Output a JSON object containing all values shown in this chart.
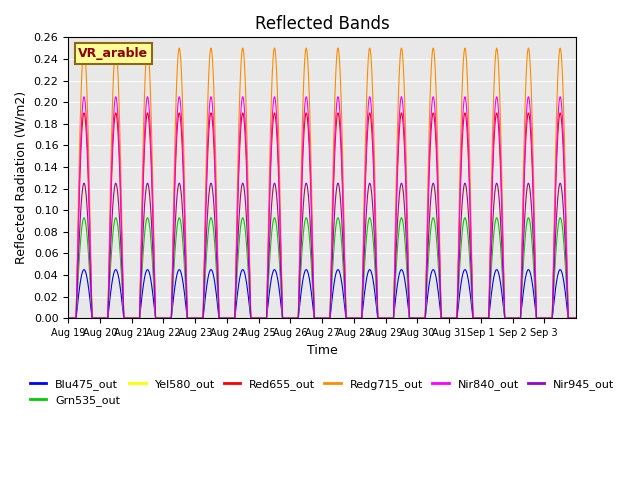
{
  "title": "Reflected Bands",
  "xlabel": "Time",
  "ylabel": "Reflected Radiation (W/m2)",
  "annotation": "VR_arable",
  "annotation_color": "#8B0000",
  "annotation_bg": "#FFFF99",
  "ylim": [
    0.0,
    0.26
  ],
  "yticks": [
    0.0,
    0.02,
    0.04,
    0.06,
    0.08,
    0.1,
    0.12,
    0.14,
    0.16,
    0.18,
    0.2,
    0.22,
    0.24,
    0.26
  ],
  "series": [
    {
      "name": "Blu475_out",
      "color": "#0000FF",
      "peak": 0.045
    },
    {
      "name": "Grn535_out",
      "color": "#00CC00",
      "peak": 0.093
    },
    {
      "name": "Yel580_out",
      "color": "#FFFF00",
      "peak": 0.122
    },
    {
      "name": "Red655_out",
      "color": "#FF0000",
      "peak": 0.19
    },
    {
      "name": "Redg715_out",
      "color": "#FF8C00",
      "peak": 0.25
    },
    {
      "name": "Nir840_out",
      "color": "#FF00FF",
      "peak": 0.205
    },
    {
      "name": "Nir945_out",
      "color": "#9900CC",
      "peak": 0.125
    }
  ],
  "xtick_positions": [
    0,
    1,
    2,
    3,
    4,
    5,
    6,
    7,
    8,
    9,
    10,
    11,
    12,
    13,
    14,
    15
  ],
  "xtick_labels": [
    "Aug 19",
    "Aug 20",
    "Aug 21",
    "Aug 22",
    "Aug 23",
    "Aug 24",
    "Aug 25",
    "Aug 26",
    "Aug 27",
    "Aug 28",
    "Aug 29",
    "Aug 30",
    "Aug 31",
    "Sep 1",
    "Sep 2",
    "Sep 3"
  ],
  "background_color": "#E8E8E8",
  "grid_color": "white",
  "n_days": 16
}
